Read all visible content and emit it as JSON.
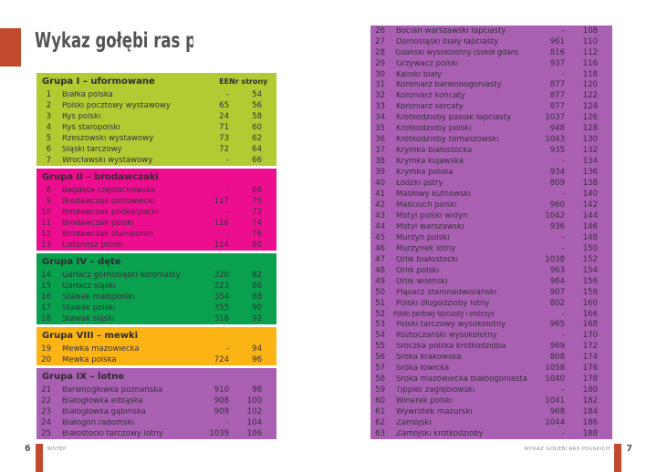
{
  "page": {
    "title": "Wykaz gołębi ras polskich",
    "left_footer": {
      "page_number": "6",
      "label": "WSTĘP"
    },
    "right_footer": {
      "page_number": "7",
      "label": "WYKAZ GOŁĘBI RAS POLSKICH"
    }
  },
  "colors": {
    "accent_red": "#c1492e",
    "lime": "#b3ca33",
    "magenta": "#ed0e90",
    "green": "#0aa14e",
    "orange": "#fcb415",
    "purple": "#a95fb2",
    "title_gray": "#525257",
    "text_dark": "#35303a",
    "footer_gray": "#8a8a8d"
  },
  "left_table": {
    "columns": {
      "ee": "EE",
      "page": "Nr strony"
    },
    "sections": [
      {
        "title": "Grupa I – uformowane",
        "color": "#b3ca33",
        "show_columns": true,
        "rows": [
          [
            "1",
            "Białka polska",
            "-",
            "54"
          ],
          [
            "2",
            "Polski pocztowy wystawowy",
            "65",
            "56"
          ],
          [
            "3",
            "Ryś polski",
            "24",
            "58"
          ],
          [
            "4",
            "Ryś staropolski",
            "71",
            "60"
          ],
          [
            "5",
            "Rzeszowski wystawowy",
            "73",
            "62"
          ],
          [
            "6",
            "Śląski tarczowy",
            "72",
            "64"
          ],
          [
            "7",
            "Wrocławski wystawowy",
            "-",
            "66"
          ]
        ]
      },
      {
        "title": "Grupa II – brodawczaki",
        "color": "#ed0e90",
        "show_columns": false,
        "rows": [
          [
            "8",
            "Bagdeta częstochowska",
            "-",
            "68"
          ],
          [
            "9",
            "Brodawczak ostrowiecki",
            "117",
            "70"
          ],
          [
            "10",
            "Brodawczak podkarpacki",
            "-",
            "72"
          ],
          [
            "11",
            "Brodawczak polski",
            "116",
            "74"
          ],
          [
            "12",
            "Brodawczak staropolski",
            "-",
            "76"
          ],
          [
            "13",
            "Listonosz polski",
            "114",
            "80"
          ]
        ]
      },
      {
        "title": "Grupa IV – dęte",
        "color": "#0aa14e",
        "show_columns": false,
        "rows": [
          [
            "14",
            "Garłacz górnośląski koroniasty",
            "320",
            "82"
          ],
          [
            "15",
            "Garłacz śląski",
            "323",
            "86"
          ],
          [
            "16",
            "Stawak małopolski",
            "354",
            "88"
          ],
          [
            "17",
            "Stawak polski",
            "355",
            "90"
          ],
          [
            "18",
            "Stawak śląski",
            "318",
            "92"
          ]
        ]
      },
      {
        "title": "Grupa VIII – mewki",
        "color": "#fcb415",
        "show_columns": false,
        "rows": [
          [
            "19",
            "Mewka mazowiecka",
            "-",
            "94"
          ],
          [
            "20",
            "Mewka polska",
            "724",
            "96"
          ]
        ]
      },
      {
        "title": "Grupa IX – lotne",
        "color": "#a95fb2",
        "show_columns": false,
        "rows": [
          [
            "21",
            "Barwnogłówka poznańska",
            "910",
            "98"
          ],
          [
            "22",
            "Białogłówka elbląska",
            "908",
            "100"
          ],
          [
            "23",
            "Białogłówka gąbińska",
            "909",
            "102"
          ],
          [
            "24",
            "Białogon radomski",
            "-",
            "104"
          ],
          [
            "25",
            "Białostocki tarczowy lotny",
            "1039",
            "106"
          ]
        ]
      }
    ]
  },
  "right_table": {
    "color": "#a95fb2",
    "rows": [
      [
        "26",
        "Bocian warszawski łapciasty",
        "-",
        "108"
      ],
      [
        "27",
        "Dolnośląski biały łapciasty",
        "961",
        "110"
      ],
      [
        "28",
        "Gdański wysokolotny (sokół gdański)",
        "816",
        "112"
      ],
      [
        "29",
        "Grzywacz polski",
        "937",
        "116"
      ],
      [
        "30",
        "Kaliski biały",
        "-",
        "118"
      ],
      [
        "31",
        "Koroniarz barwnoogoniasty",
        "877",
        "120"
      ],
      [
        "32",
        "Koroniarz końcaty",
        "877",
        "122"
      ],
      [
        "33",
        "Koroniarz sercaty",
        "877",
        "124"
      ],
      [
        "34",
        "Krótkodzioby pasiak łapciasty",
        "1037",
        "126"
      ],
      [
        "35",
        "Krótkodzioby polski",
        "948",
        "128"
      ],
      [
        "36",
        "Krótkodzioby tomaszowski",
        "1043",
        "130"
      ],
      [
        "37",
        "Krymka białostocka",
        "935",
        "132"
      ],
      [
        "38",
        "Krymka kujawska",
        "-",
        "134"
      ],
      [
        "39",
        "Krymka polska",
        "934",
        "136"
      ],
      [
        "40",
        "Łódzki pstry",
        "809",
        "138"
      ],
      [
        "41",
        "Masłowy kutnowski",
        "-",
        "140"
      ],
      [
        "42",
        "Maściuch polski",
        "960",
        "142"
      ],
      [
        "43",
        "Motyl polski widyn",
        "1042",
        "144"
      ],
      [
        "44",
        "Motyl warszawski",
        "936",
        "146"
      ],
      [
        "45",
        "Murzyn polski",
        "-",
        "148"
      ],
      [
        "46",
        "Murzynek lotny",
        "-",
        "150"
      ],
      [
        "47",
        "Orlik białostocki",
        "1038",
        "152"
      ],
      [
        "48",
        "Orlik polski",
        "963",
        "154"
      ],
      [
        "49",
        "Orlik wileński",
        "964",
        "156"
      ],
      [
        "50",
        "Pląsacz staronadwiślański",
        "907",
        "158"
      ],
      [
        "51",
        "Polski długodzioby lotny",
        "802",
        "160"
      ],
      [
        "52",
        "Polski perłowy łapciasty i srebrzysty łapciasty",
        "-",
        "166"
      ],
      [
        "53",
        "Polski tarczowy wysokolotny",
        "965",
        "168"
      ],
      [
        "54",
        "Roztoczański wysokolotny",
        "-",
        "170"
      ],
      [
        "55",
        "Sroczka polska krótkodzioba",
        "969",
        "172"
      ],
      [
        "56",
        "Sroka krakowska",
        "808",
        "174"
      ],
      [
        "57",
        "Sroka łowicka",
        "1058",
        "176"
      ],
      [
        "58",
        "Sroka mazowiecka białoogoniasta",
        "1040",
        "178"
      ],
      [
        "59",
        "Tippler zagłębiowski",
        "-",
        "180"
      ],
      [
        "60",
        "Winerek polski",
        "1041",
        "182"
      ],
      [
        "61",
        "Wywrotek mazurski",
        "968",
        "184"
      ],
      [
        "62",
        "Zamojski",
        "1044",
        "186"
      ],
      [
        "63",
        "Zamojski krótkodzioby",
        "-",
        "188"
      ]
    ]
  }
}
